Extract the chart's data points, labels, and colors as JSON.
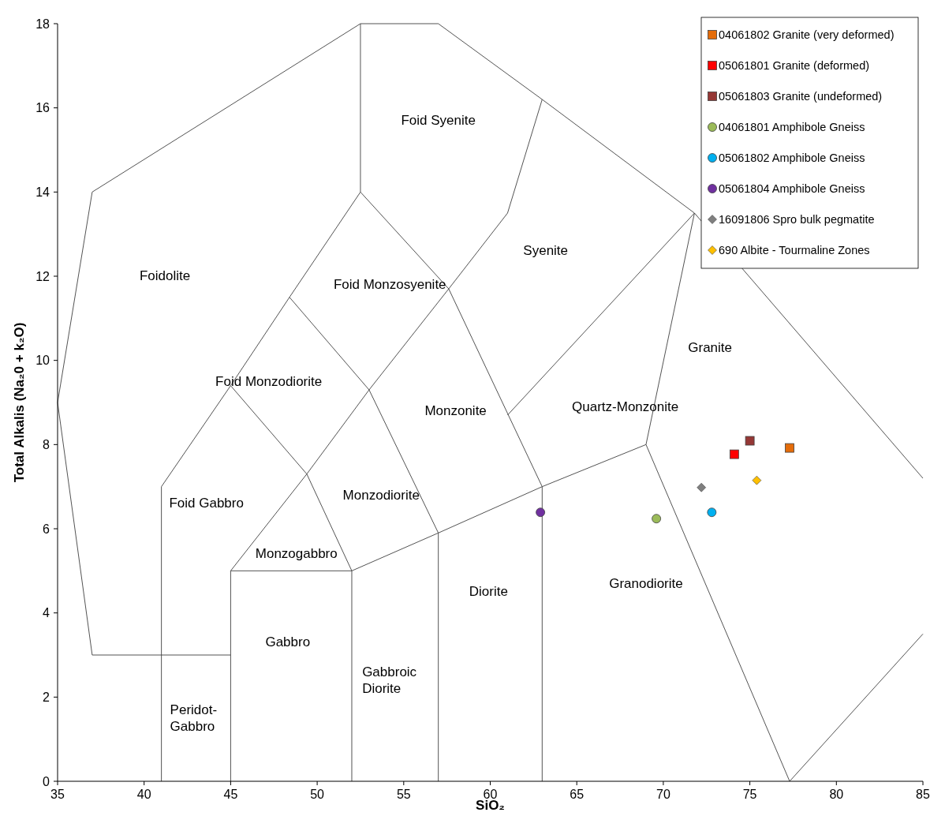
{
  "chart_data": {
    "type": "scatter",
    "xlabel": "SiO₂",
    "ylabel": "Total Alkalis (Na₂0 + k₂O)",
    "xlim": [
      35,
      85
    ],
    "ylim": [
      0,
      18
    ],
    "xticks": [
      35,
      40,
      45,
      50,
      55,
      60,
      65,
      70,
      75,
      80,
      85
    ],
    "yticks": [
      0,
      2,
      4,
      6,
      8,
      10,
      12,
      14,
      16,
      18
    ],
    "grid": false,
    "legend": "top right",
    "series": [
      {
        "type": "line",
        "color": "#404040",
        "marker": "none",
        "x": [
          37,
          35,
          37,
          52.5,
          57,
          63,
          71.8,
          85
        ],
        "values": [
          3,
          9,
          14,
          18,
          18,
          16.2,
          13.5,
          7.2
        ]
      },
      {
        "type": "line",
        "color": "#404040",
        "marker": "none",
        "x": [
          37,
          45
        ],
        "values": [
          3,
          3
        ]
      },
      {
        "type": "line",
        "color": "#404040",
        "marker": "none",
        "x": [
          41,
          41,
          45,
          48.4,
          52.5,
          52.5
        ],
        "values": [
          0,
          7,
          9.4,
          11.5,
          14,
          18
        ]
      },
      {
        "type": "line",
        "color": "#404040",
        "marker": "none",
        "x": [
          52.5,
          57.6,
          61,
          63
        ],
        "values": [
          14,
          11.7,
          13.5,
          16.2
        ]
      },
      {
        "type": "line",
        "color": "#404040",
        "marker": "none",
        "x": [
          48.4,
          53,
          57.6
        ],
        "values": [
          11.5,
          9.3,
          11.7
        ]
      },
      {
        "type": "line",
        "color": "#404040",
        "marker": "none",
        "x": [
          45,
          49.4,
          53
        ],
        "values": [
          9.4,
          7.3,
          9.3
        ]
      },
      {
        "type": "line",
        "color": "#404040",
        "marker": "none",
        "x": [
          45,
          49.4,
          52
        ],
        "values": [
          5,
          7.3,
          5
        ]
      },
      {
        "type": "line",
        "color": "#404040",
        "marker": "none",
        "x": [
          53,
          57,
          57
        ],
        "values": [
          9.3,
          5.9,
          0
        ]
      },
      {
        "type": "line",
        "color": "#404040",
        "marker": "none",
        "x": [
          57.6,
          63,
          63
        ],
        "values": [
          11.7,
          7,
          0
        ]
      },
      {
        "type": "line",
        "color": "#404040",
        "marker": "none",
        "x": [
          61,
          71.8
        ],
        "values": [
          8.7,
          13.5
        ]
      },
      {
        "type": "line",
        "color": "#404040",
        "marker": "none",
        "x": [
          52,
          57,
          63,
          69,
          71.8
        ],
        "values": [
          5,
          5.9,
          7,
          8,
          13.5
        ]
      },
      {
        "type": "line",
        "color": "#404040",
        "marker": "none",
        "x": [
          69,
          77.3,
          85
        ],
        "values": [
          8,
          0,
          3.5
        ]
      },
      {
        "type": "line",
        "color": "#404040",
        "marker": "none",
        "x": [
          45,
          45,
          52,
          52
        ],
        "values": [
          0,
          5,
          5,
          0
        ]
      },
      {
        "name": "04061802 Granite (very deformed)",
        "color": "#e46c0a",
        "marker": "square",
        "x": [
          77.3
        ],
        "values": [
          7.92
        ]
      },
      {
        "name": "05061801 Granite (deformed)",
        "color": "#ff0000",
        "marker": "square",
        "x": [
          74.1
        ],
        "values": [
          7.77
        ]
      },
      {
        "name": "05061803 Granite (undeformed)",
        "color": "#953735",
        "marker": "square",
        "x": [
          75.0
        ],
        "values": [
          8.09
        ]
      },
      {
        "name": "04061801 Amphibole Gneiss",
        "color": "#9bbb59",
        "marker": "circle",
        "x": [
          69.6
        ],
        "values": [
          6.24
        ]
      },
      {
        "name": "05061802 Amphibole Gneiss",
        "color": "#00b0f0",
        "marker": "circle",
        "x": [
          72.8
        ],
        "values": [
          6.39
        ]
      },
      {
        "name": "05061804 Amphibole Gneiss",
        "color": "#7030a0",
        "marker": "circle",
        "x": [
          62.9
        ],
        "values": [
          6.39
        ]
      },
      {
        "name": "16091806 Spro bulk pegmatite",
        "color": "#7f7f7f",
        "marker": "diamond",
        "x": [
          72.2
        ],
        "values": [
          6.98
        ]
      },
      {
        "name": "690 Albite - Tourmaline Zones",
        "color": "#ffc000",
        "marker": "diamond",
        "x": [
          75.4
        ],
        "values": [
          7.15
        ]
      }
    ],
    "annotations": [
      "Foid Syenite",
      "Syenite",
      "Foidolite",
      "Foid Monzosyenite",
      "Granite",
      "Foid Monzodiorite",
      "Monzonite",
      "Quartz-Monzonite",
      "Foid Gabbro",
      "Monzodiorite",
      "Monzogabbro",
      "Diorite",
      "Granodiorite",
      "Gabbro",
      "Gabbroic Diorite",
      "Peridot-Gabbro"
    ]
  }
}
